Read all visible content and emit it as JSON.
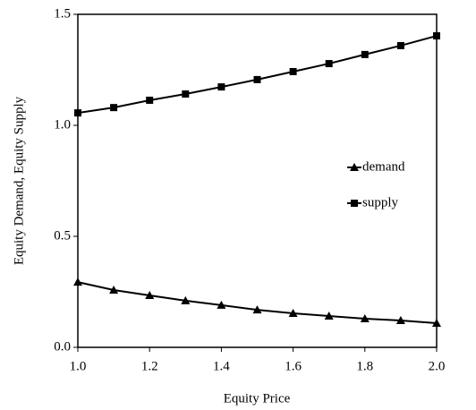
{
  "chart_data": {
    "type": "line",
    "x_label": "Equity Price",
    "y_label": "Equity Demand, Equity Supply",
    "x": [
      1.0,
      1.1,
      1.2,
      1.3,
      1.4,
      1.5,
      1.6,
      1.7,
      1.8,
      1.9,
      2.0
    ],
    "series": [
      {
        "name": "demand",
        "color": "#000000",
        "marker": "triangle",
        "values": [
          0.294,
          0.258,
          0.234,
          0.21,
          0.19,
          0.169,
          0.153,
          0.141,
          0.129,
          0.121,
          0.109
        ]
      },
      {
        "name": "supply",
        "color": "#000000",
        "marker": "square",
        "values": [
          1.056,
          1.08,
          1.113,
          1.141,
          1.173,
          1.206,
          1.242,
          1.278,
          1.319,
          1.359,
          1.403
        ]
      }
    ],
    "xlim": [
      1.0,
      2.0
    ],
    "xticks": [
      {
        "value": 1,
        "label": "1.0"
      },
      1.2,
      1.4,
      1.6,
      1.8,
      {
        "value": 2,
        "label": "2.0"
      }
    ],
    "ylim": [
      0,
      1.5
    ],
    "yticks": [
      {
        "value": 0,
        "label": "0.0"
      },
      0.5,
      {
        "value": 1,
        "label": "1.0"
      },
      1.5
    ],
    "grid": false,
    "legend": "center right"
  }
}
